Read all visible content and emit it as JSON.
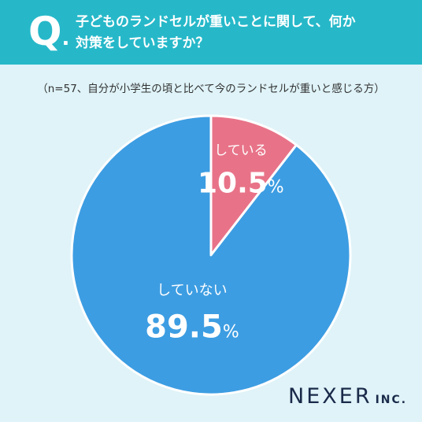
{
  "header": {
    "q_mark": "Q",
    "question_line1": "子どものランドセルが重いことに関して、何か",
    "question_line2": "対策をしていますか？"
  },
  "subtitle": "（n=57、自分が小学生の頃と比べて今のランドセルが重いと感じる方）",
  "chart_data": {
    "type": "pie",
    "slices": [
      {
        "label": "している",
        "value": 10.5,
        "value_text": "10.5",
        "color": "#e87388"
      },
      {
        "label": "していない",
        "value": 89.5,
        "value_text": "89.5",
        "color": "#3d9de2"
      }
    ],
    "unit": "%",
    "start": "12 o'clock, clockwise"
  },
  "logo": {
    "name": "NEXER",
    "suffix": "INC."
  }
}
